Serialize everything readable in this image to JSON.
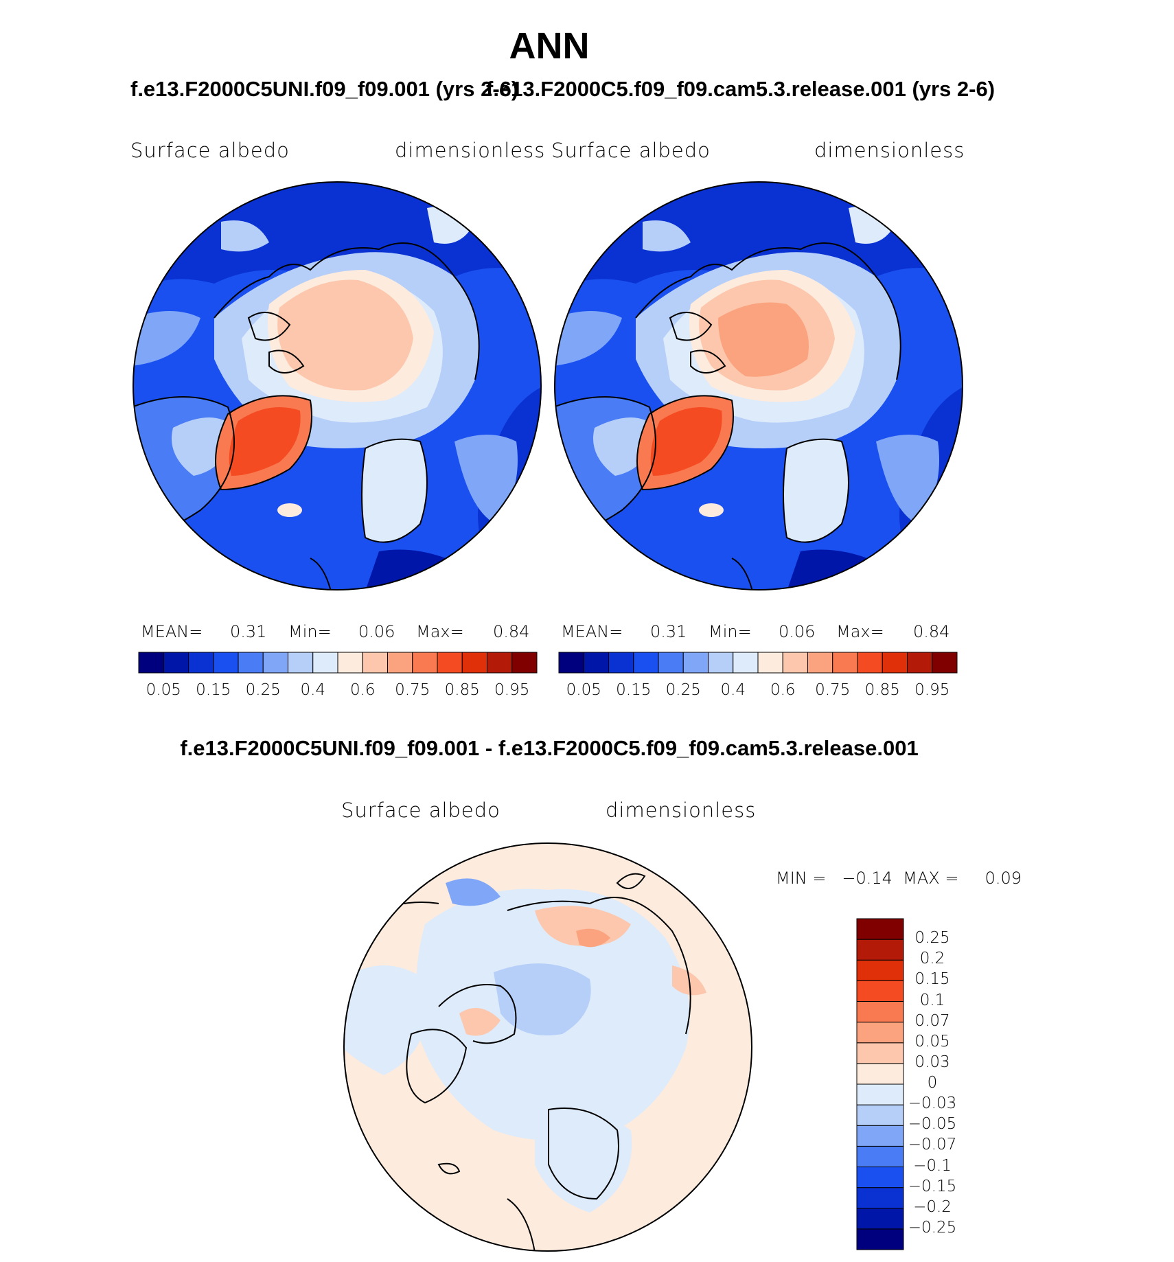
{
  "figure": {
    "title": "ANN",
    "case1_title": "f.e13.F2000C5UNI.f09_f09.001 (yrs 2-6)",
    "case2_title": "f.e13.F2000C5.f09_f09.cam5.3.release.001 (yrs 2-6)",
    "diff_title": "f.e13.F2000C5UNI.f09_f09.001 - f.e13.F2000C5.f09_f09.cam5.3.release.001"
  },
  "panels": [
    {
      "variable": "Surface albedo",
      "units": "dimensionless",
      "stats": {
        "mean_label": "MEAN=",
        "mean": "0.31",
        "min_label": "Min=",
        "min": "0.06",
        "max_label": "Max=",
        "max": "0.84"
      }
    },
    {
      "variable": "Surface albedo",
      "units": "dimensionless",
      "stats": {
        "mean_label": "MEAN=",
        "mean": "0.31",
        "min_label": "Min=",
        "min": "0.06",
        "max_label": "Max=",
        "max": "0.84"
      }
    }
  ],
  "diff_panel": {
    "variable": "Surface albedo",
    "units": "dimensionless",
    "stats_text": "MIN =   −0.14  MAX =     0.09"
  },
  "colorbar_abs": {
    "colors": [
      "#00007f",
      "#0016a8",
      "#0a32d2",
      "#1a50f0",
      "#4a7cf5",
      "#7fa6f7",
      "#b6cff9",
      "#deebfb",
      "#fdebde",
      "#fcc7ac",
      "#fba37e",
      "#f97a50",
      "#f54b22",
      "#e0300a",
      "#b41a08",
      "#800000"
    ],
    "labels": [
      "0.05",
      "0.15",
      "0.25",
      "0.4",
      "0.6",
      "0.75",
      "0.85",
      "0.95"
    ]
  },
  "colorbar_diff": {
    "colors": [
      "#00007f",
      "#0016a8",
      "#0a32d2",
      "#1a50f0",
      "#4a7cf5",
      "#7fa6f7",
      "#b6cff9",
      "#deebfb",
      "#fdebde",
      "#fcc7ac",
      "#fba37e",
      "#f97a50",
      "#f54b22",
      "#e0300a",
      "#b41a08",
      "#800000"
    ],
    "labels": [
      "0.25",
      "0.2",
      "0.15",
      "0.1",
      "0.07",
      "0.05",
      "0.03",
      "0",
      "−0.03",
      "−0.05",
      "−0.07",
      "−0.1",
      "−0.15",
      "−0.2",
      "−0.25"
    ]
  }
}
